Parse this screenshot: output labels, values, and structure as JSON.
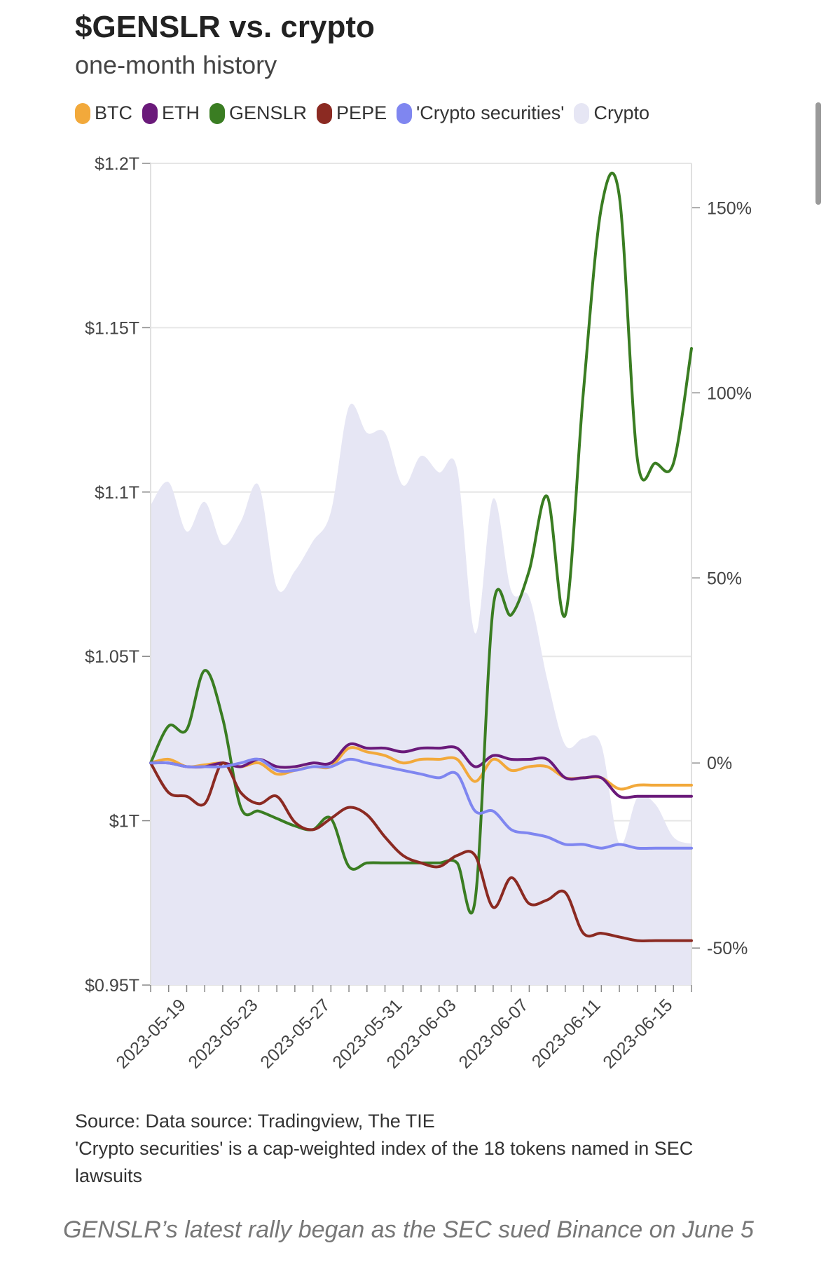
{
  "title": "$GENSLR vs. crypto",
  "subtitle": "one-month history",
  "legend": [
    {
      "label": "BTC",
      "color": "#f2a93b"
    },
    {
      "label": "ETH",
      "color": "#6a1a7a"
    },
    {
      "label": "GENSLR",
      "color": "#3a7d22"
    },
    {
      "label": "PEPE",
      "color": "#8b2a22"
    },
    {
      "label": "'Crypto securities'",
      "color": "#7f86f0"
    },
    {
      "label": "Crypto",
      "color": "#e6e6f4"
    }
  ],
  "source": {
    "line1": "Source: Data source: Tradingview, The TIE",
    "line2": "'Crypto securities' is a cap-weighted index of the 18 tokens named in SEC lawsuits"
  },
  "caption": "GENSLR’s latest rally began as the SEC sued Binance on June 5",
  "chart_data": {
    "type": "line",
    "x_dates": [
      "2023-05-17",
      "2023-05-18",
      "2023-05-19",
      "2023-05-20",
      "2023-05-21",
      "2023-05-22",
      "2023-05-23",
      "2023-05-24",
      "2023-05-25",
      "2023-05-26",
      "2023-05-27",
      "2023-05-28",
      "2023-05-29",
      "2023-05-30",
      "2023-05-31",
      "2023-06-01",
      "2023-06-02",
      "2023-06-03",
      "2023-06-04",
      "2023-06-05",
      "2023-06-06",
      "2023-06-07",
      "2023-06-08",
      "2023-06-09",
      "2023-06-10",
      "2023-06-11",
      "2023-06-12",
      "2023-06-13",
      "2023-06-14",
      "2023-06-15",
      "2023-06-16"
    ],
    "x_ticks": [
      "2023-05-19",
      "2023-05-23",
      "2023-05-27",
      "2023-05-31",
      "2023-06-03",
      "2023-06-07",
      "2023-06-11",
      "2023-06-15"
    ],
    "y_left": {
      "ticks": [
        "$0.95T",
        "$1T",
        "$1.05T",
        "$1.1T",
        "$1.15T",
        "$1.2T"
      ],
      "ylim": [
        0.95,
        1.2
      ],
      "unit": "$T"
    },
    "y_right": {
      "ticks": [
        "-50%",
        "0%",
        "50%",
        "100%",
        "150%"
      ],
      "ylim": [
        -60,
        162
      ],
      "unit": "%"
    },
    "area_series": {
      "name": "Crypto",
      "axis": "left",
      "color": "#e6e6f4",
      "values": [
        1.096,
        1.103,
        1.088,
        1.097,
        1.084,
        1.091,
        1.102,
        1.071,
        1.076,
        1.085,
        1.094,
        1.126,
        1.118,
        1.118,
        1.102,
        1.111,
        1.106,
        1.107,
        1.057,
        1.098,
        1.07,
        1.068,
        1.043,
        1.023,
        1.025,
        1.023,
        0.993,
        1.007,
        1.005,
        0.995,
        0.993
      ]
    },
    "series": [
      {
        "name": "BTC",
        "axis": "right",
        "color": "#f2a93b",
        "values": [
          0,
          1,
          -1,
          -0.5,
          0,
          -1,
          0,
          -3,
          -2,
          -1,
          -1,
          4,
          3,
          2,
          0,
          1,
          1,
          1,
          -5,
          1,
          -2,
          -1,
          -1,
          -4,
          -4,
          -4,
          -7,
          -6,
          -6,
          -6,
          -6
        ]
      },
      {
        "name": "ETH",
        "axis": "right",
        "color": "#6a1a7a",
        "values": [
          0,
          0,
          -1,
          -1,
          0,
          -1,
          1,
          -1,
          -1,
          0,
          0,
          5,
          4,
          4,
          3,
          4,
          4,
          4,
          -1,
          2,
          1,
          1,
          1,
          -4,
          -4,
          -4,
          -9,
          -9,
          -9,
          -9,
          -9
        ]
      },
      {
        "name": "GENSLR",
        "axis": "right",
        "color": "#3a7d22",
        "values": [
          0,
          10,
          9,
          25,
          12,
          -12,
          -13,
          -15,
          -17,
          -18,
          -15,
          -28,
          -27,
          -27,
          -27,
          -27,
          -27,
          -27,
          -37,
          42,
          40,
          52,
          72,
          40,
          100,
          150,
          153,
          82,
          81,
          81,
          112
        ]
      },
      {
        "name": "PEPE",
        "axis": "right",
        "color": "#8b2a22",
        "values": [
          0,
          -8,
          -9,
          -11,
          0,
          -8,
          -11,
          -9,
          -16,
          -18,
          -15,
          -12,
          -14,
          -20,
          -25,
          -27,
          -28,
          -25,
          -25,
          -39,
          -31,
          -38,
          -37,
          -35,
          -46,
          -46,
          -47,
          -48,
          -48,
          -48,
          -48
        ]
      },
      {
        "name": "'Crypto securities'",
        "axis": "right",
        "color": "#7f86f0",
        "values": [
          0,
          0,
          -1,
          -1,
          -1,
          0,
          1,
          -2,
          -2,
          -1,
          -1,
          1,
          0,
          -1,
          -2,
          -3,
          -4,
          -3,
          -13,
          -13,
          -18,
          -19,
          -20,
          -22,
          -22,
          -23,
          -22,
          -23,
          -23,
          -23,
          -23
        ]
      }
    ]
  }
}
